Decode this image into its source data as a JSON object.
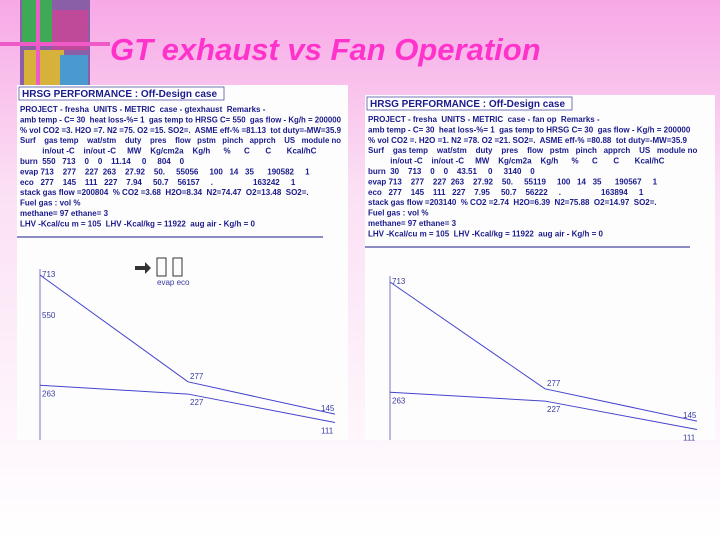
{
  "title": "GT exhaust vs Fan Operation",
  "panels": [
    {
      "header": "HRSG PERFORMANCE : Off-Design case",
      "lines": [
        "PROJECT - fresha  UNITS - METRIC  case - gtexhaust  Remarks -",
        "amb temp - C= 30  heat loss-%= 1  gas temp to HRSG C= 550  gas flow - Kg/h = 200000",
        "% vol CO2 =3. H2O =7. N2 =75. O2 =15. SO2=.  ASME eff-% =81.13  tot duty=-MW=35.9",
        "Surf    gas temp    wat/stm    duty    pres    flow   pstm   pinch   apprch    US   module no",
        "          in/out -C    in/out -C     MW    Kg/cm2a    Kg/h      %      C       C       Kcal/hC",
        "burn  550   713    0    0    11.14     0     804    0",
        "evap 713    277    227  263    27.92    50.     55056     100   14   35      190582     1",
        "eco   277    145    111   227    7.94     50.7    56157     .                  163242     1",
        "stack gas flow =200804  % CO2 =3.68  H2O=8.34  N2=74.47  O2=13.48  SO2=.",
        "Fuel gas : vol %",
        "methane= 97 ethane= 3",
        "LHV -Kcal/cu m = 105  LHV -Kcal/kg = 11922  aug air - Kg/h = 0"
      ],
      "icon_label": "evap eco",
      "diagram": {
        "burner_inlet": 550,
        "gas_temps": [
          713,
          277,
          145
        ],
        "water_temps": [
          263,
          227,
          111
        ]
      }
    },
    {
      "header": "HRSG PERFORMANCE : Off-Design case",
      "lines": [
        "PROJECT - fresha  UNITS - METRIC  case - fan op  Remarks -",
        "amb temp - C= 30  heat loss-%= 1  gas temp to HRSG C= 30  gas flow - Kg/h = 200000",
        "% vol CO2 =. H2O =1. N2 =78. O2 =21. SO2=.  ASME eff-% =80.88  tot duty=-MW=35.9",
        "Surf    gas temp    wat/stm    duty    pres    flow   pstm   pinch   apprch    US   module no",
        "          in/out -C    in/out -C     MW    Kg/cm2a    Kg/h      %      C       C       Kcal/hC",
        "burn  30    713    0    0    43.51     0     3140    0",
        "evap 713    277    227  263    27.92    50.     55119     100   14   35      190567     1",
        "eco   277    145    111   227    7.95     50.7    56222     .                  163894     1",
        "stack gas flow =203140  % CO2 =2.74  H2O=6.39  N2=75.88  O2=14.97  SO2=.",
        "Fuel gas : vol %",
        "methane= 97 ethane= 3",
        "LHV -Kcal/cu m = 105  LHV -Kcal/kg = 11922  aug air - Kg/h = 0"
      ],
      "diagram": {
        "gas_temps": [
          713,
          277,
          145
        ],
        "water_temps": [
          263,
          227,
          111
        ]
      }
    }
  ]
}
